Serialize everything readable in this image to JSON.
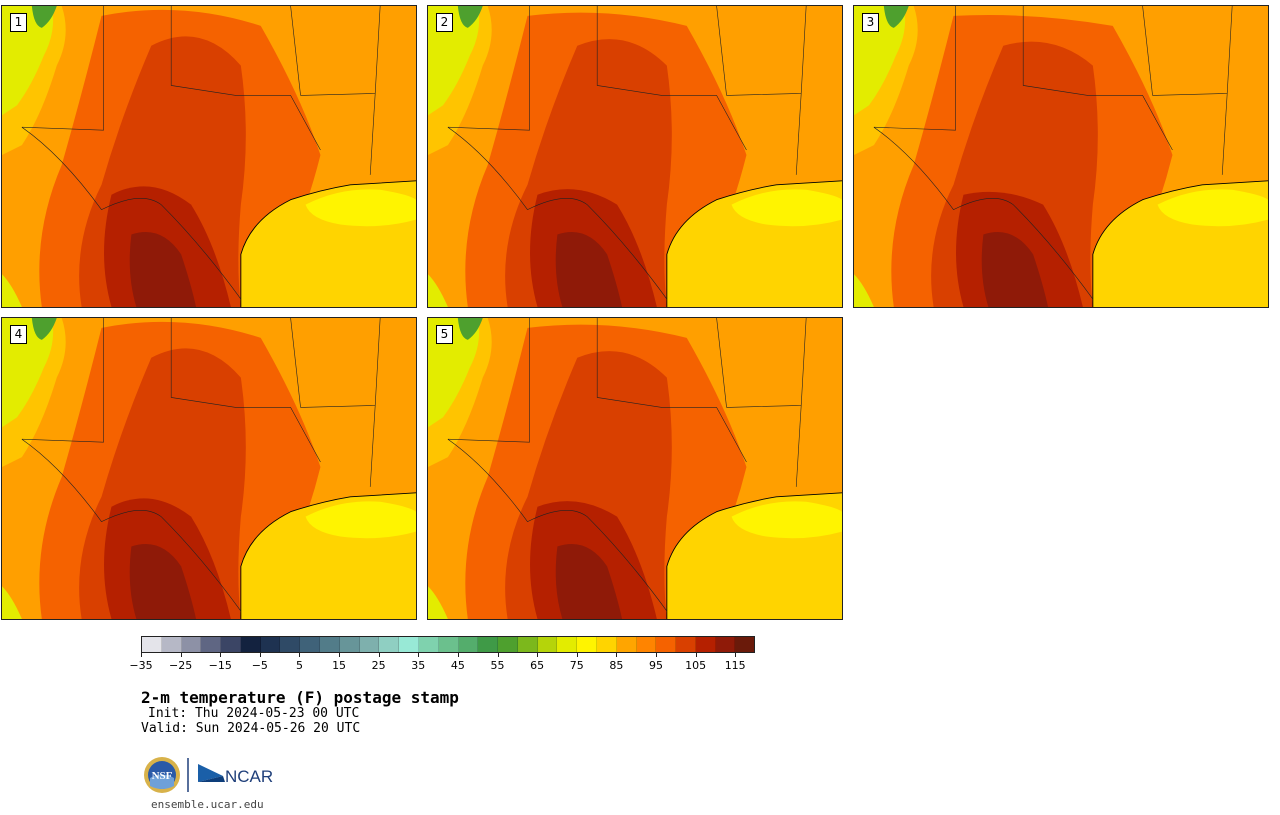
{
  "panels": [
    {
      "label": "1"
    },
    {
      "label": "2"
    },
    {
      "label": "3"
    },
    {
      "label": "4"
    },
    {
      "label": "5"
    }
  ],
  "colorbar": {
    "colors": [
      "#e4e4ea",
      "#b6b8c6",
      "#8d91a6",
      "#5f6683",
      "#3b4565",
      "#13223f",
      "#1e3251",
      "#2f4a66",
      "#3f6279",
      "#527c89",
      "#679599",
      "#7eb0ad",
      "#8fcfc2",
      "#98e9d6",
      "#7fd2ae",
      "#6bc08d",
      "#54ad6c",
      "#3f9a47",
      "#4ea02e",
      "#7cb81c",
      "#b5d40a",
      "#e3ec00",
      "#fff400",
      "#ffd400",
      "#ffa500",
      "#ff8400",
      "#f56200",
      "#d94000",
      "#b52000",
      "#8f1a08",
      "#6a1a0a"
    ],
    "tick_labels": [
      "−35",
      "−25",
      "−15",
      "−5",
      "5",
      "15",
      "25",
      "35",
      "45",
      "55",
      "65",
      "75",
      "85",
      "95",
      "105",
      "115"
    ]
  },
  "title": "2-m temperature (F) postage stamp",
  "init_line": "Init: Thu 2024-05-23 00 UTC",
  "valid_line": "Valid: Sun 2024-05-26 20 UTC",
  "logo": {
    "left_text": "NSF",
    "right_text": "NCAR"
  },
  "website": "ensemble.ucar.edu"
}
